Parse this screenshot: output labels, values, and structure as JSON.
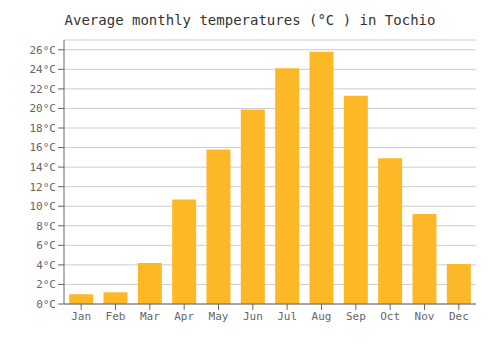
{
  "chart_data": {
    "type": "bar",
    "title": "Average monthly temperatures (°C ) in Tochio",
    "categories": [
      "Jan",
      "Feb",
      "Mar",
      "Apr",
      "May",
      "Jun",
      "Jul",
      "Aug",
      "Sep",
      "Oct",
      "Nov",
      "Dec"
    ],
    "values": [
      1.0,
      1.2,
      4.2,
      10.7,
      15.8,
      19.9,
      24.1,
      25.8,
      21.3,
      14.9,
      9.2,
      4.1
    ],
    "color": "#FDB827",
    "ylim": [
      0,
      27
    ],
    "yticks": [
      {
        "value": 0,
        "label": "0°C"
      },
      {
        "value": 2,
        "label": "2°C"
      },
      {
        "value": 4,
        "label": "4°C"
      },
      {
        "value": 6,
        "label": "6°C"
      },
      {
        "value": 8,
        "label": "8°C"
      },
      {
        "value": 10,
        "label": "10°C"
      },
      {
        "value": 12,
        "label": "12°C"
      },
      {
        "value": 14,
        "label": "14°C"
      },
      {
        "value": 16,
        "label": "16°C"
      },
      {
        "value": 18,
        "label": "18°C"
      },
      {
        "value": 20,
        "label": "20°C"
      },
      {
        "value": 22,
        "label": "22°C"
      },
      {
        "value": 24,
        "label": "24°C"
      },
      {
        "value": 26,
        "label": "26°C"
      }
    ],
    "grid": true
  }
}
